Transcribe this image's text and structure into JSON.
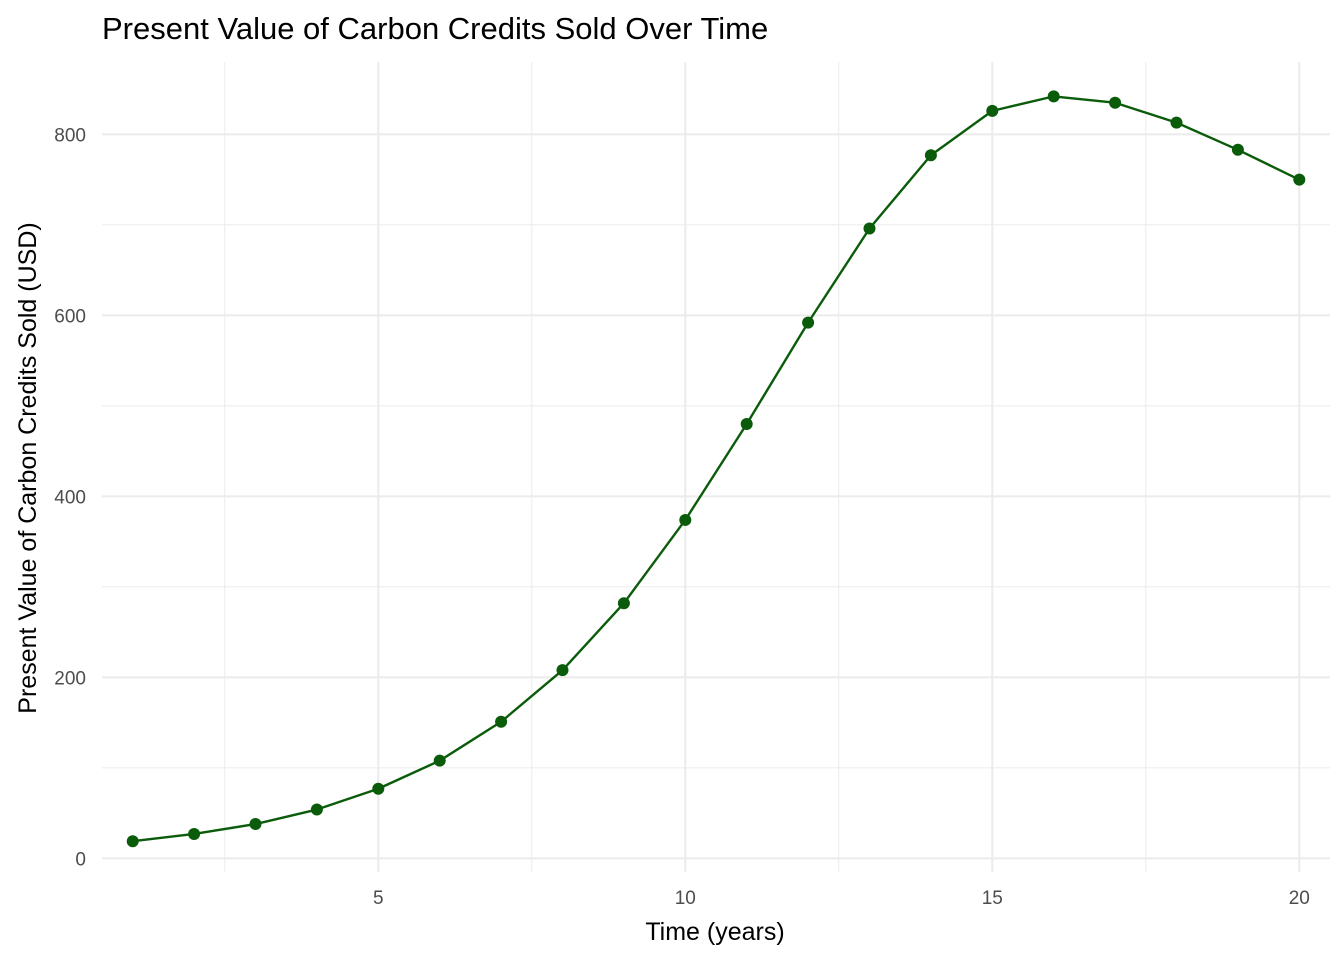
{
  "chart_data": {
    "type": "line",
    "title": "Present Value of Carbon Credits Sold Over Time",
    "xlabel": "Time (years)",
    "ylabel": "Present Value of Carbon Credits Sold (USD)",
    "xlim": [
      0.5,
      20.5
    ],
    "ylim": [
      -15,
      880
    ],
    "x_ticks": [
      5,
      10,
      15,
      20
    ],
    "y_ticks": [
      0,
      200,
      400,
      600,
      800
    ],
    "x_minor_ticks": [
      2.5,
      7.5,
      12.5,
      17.5
    ],
    "y_minor_ticks": [
      100,
      300,
      500,
      700
    ],
    "grid": true,
    "line_color": "#0a5c0a",
    "series": [
      {
        "x": [
          1,
          2,
          3,
          4,
          5,
          6,
          7,
          8,
          9,
          10,
          11,
          12,
          13,
          14,
          15,
          16,
          17,
          18,
          19,
          20
        ],
        "values": [
          19,
          27,
          38,
          54,
          77,
          108,
          151,
          208,
          282,
          374,
          480,
          592,
          696,
          777,
          826,
          842,
          835,
          813,
          783,
          750
        ]
      }
    ]
  }
}
